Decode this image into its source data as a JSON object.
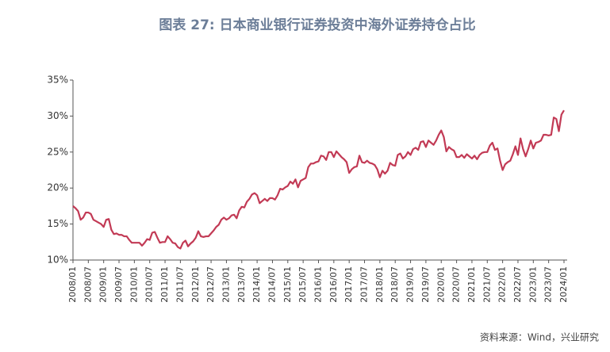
{
  "chart_data": {
    "type": "line",
    "title": "图表 27: 日本商业银行证券投资中海外证券持仓占比",
    "source": "资料来源：Wind，兴业研究",
    "categories": [
      "2008/01",
      null,
      null,
      null,
      null,
      null,
      "2008/07",
      null,
      null,
      null,
      null,
      null,
      "2009/01",
      null,
      null,
      null,
      null,
      null,
      "2009/07",
      null,
      null,
      null,
      null,
      null,
      "2010/01",
      null,
      null,
      null,
      null,
      null,
      "2010/07",
      null,
      null,
      null,
      null,
      null,
      "2011/01",
      null,
      null,
      null,
      null,
      null,
      "2011/07",
      null,
      null,
      null,
      null,
      null,
      "2012/01",
      null,
      null,
      null,
      null,
      null,
      "2012/07",
      null,
      null,
      null,
      null,
      null,
      "2013/01",
      null,
      null,
      null,
      null,
      null,
      "2013/07",
      null,
      null,
      null,
      null,
      null,
      "2014/01",
      null,
      null,
      null,
      null,
      null,
      "2014/07",
      null,
      null,
      null,
      null,
      null,
      "2015/01",
      null,
      null,
      null,
      null,
      null,
      "2015/07",
      null,
      null,
      null,
      null,
      null,
      "2016/01",
      null,
      null,
      null,
      null,
      null,
      "2016/07",
      null,
      null,
      null,
      null,
      null,
      "2017/01",
      null,
      null,
      null,
      null,
      null,
      "2017/07",
      null,
      null,
      null,
      null,
      null,
      "2018/01",
      null,
      null,
      null,
      null,
      null,
      "2018/07",
      null,
      null,
      null,
      null,
      null,
      "2019/01",
      null,
      null,
      null,
      null,
      null,
      "2019/07",
      null,
      null,
      null,
      null,
      null,
      "2020/01",
      null,
      null,
      null,
      null,
      null,
      "2020/07",
      null,
      null,
      null,
      null,
      null,
      "2021/01",
      null,
      null,
      null,
      null,
      null,
      "2021/07",
      null,
      null,
      null,
      null,
      null,
      "2022/01",
      null,
      null,
      null,
      null,
      null,
      "2022/07",
      null,
      null,
      null,
      null,
      null,
      "2023/01",
      null,
      null,
      null,
      null,
      null,
      "2023/07",
      null,
      null,
      null,
      null,
      null,
      "2024/01"
    ],
    "series": [
      {
        "color": "#c23a55",
        "values": [
          17.5,
          17.2,
          16.8,
          15.6,
          15.9,
          16.6,
          16.6,
          16.4,
          15.6,
          15.4,
          15.2,
          15.0,
          14.6,
          15.6,
          15.7,
          14.2,
          13.6,
          13.7,
          13.5,
          13.5,
          13.3,
          13.3,
          12.8,
          12.4,
          12.4,
          12.4,
          12.4,
          12.0,
          12.4,
          12.9,
          12.8,
          13.8,
          13.9,
          13.1,
          12.4,
          12.5,
          12.5,
          13.3,
          12.9,
          12.4,
          12.3,
          11.8,
          11.6,
          12.4,
          12.7,
          11.9,
          12.3,
          12.6,
          13.1,
          14.0,
          13.3,
          13.2,
          13.3,
          13.3,
          13.7,
          14.1,
          14.6,
          14.9,
          15.6,
          15.9,
          15.6,
          15.8,
          16.2,
          16.3,
          15.8,
          16.9,
          17.4,
          17.3,
          18.1,
          18.5,
          19.1,
          19.3,
          19.0,
          17.9,
          18.2,
          18.5,
          18.2,
          18.6,
          18.6,
          18.4,
          19.0,
          19.9,
          19.8,
          20.1,
          20.3,
          20.9,
          20.6,
          21.2,
          20.1,
          21.0,
          21.2,
          21.4,
          22.9,
          23.4,
          23.4,
          23.6,
          23.7,
          24.5,
          24.4,
          23.9,
          25.0,
          25.0,
          24.3,
          25.1,
          24.7,
          24.3,
          24.0,
          23.6,
          22.1,
          22.6,
          22.9,
          23.0,
          24.5,
          23.6,
          23.5,
          23.8,
          23.5,
          23.4,
          23.2,
          22.6,
          21.5,
          22.4,
          22.0,
          22.4,
          23.5,
          23.2,
          23.1,
          24.6,
          24.8,
          24.1,
          24.4,
          25.0,
          24.6,
          25.4,
          25.6,
          25.3,
          26.4,
          26.5,
          25.7,
          26.6,
          26.3,
          26.0,
          26.6,
          27.4,
          28.0,
          27.1,
          25.1,
          25.7,
          25.4,
          25.2,
          24.3,
          24.3,
          24.6,
          24.2,
          24.7,
          24.4,
          24.1,
          24.5,
          24.0,
          24.6,
          24.9,
          25.0,
          25.0,
          25.9,
          26.3,
          25.3,
          25.5,
          23.8,
          22.5,
          23.3,
          23.6,
          23.8,
          24.7,
          25.8,
          24.6,
          26.9,
          25.4,
          24.4,
          25.4,
          26.6,
          25.5,
          26.3,
          26.4,
          26.6,
          27.4,
          27.4,
          27.3,
          27.4,
          29.8,
          29.6,
          27.9,
          30.2,
          30.8
        ]
      }
    ],
    "ylim": [
      10,
      35
    ],
    "yticks": [
      {
        "value": 10,
        "label": "10%"
      },
      {
        "value": 15,
        "label": "15%"
      },
      {
        "value": 20,
        "label": "20%"
      },
      {
        "value": 25,
        "label": "25%"
      },
      {
        "value": 30,
        "label": "30%"
      },
      {
        "value": 35,
        "label": "35%"
      }
    ],
    "grid": false
  }
}
